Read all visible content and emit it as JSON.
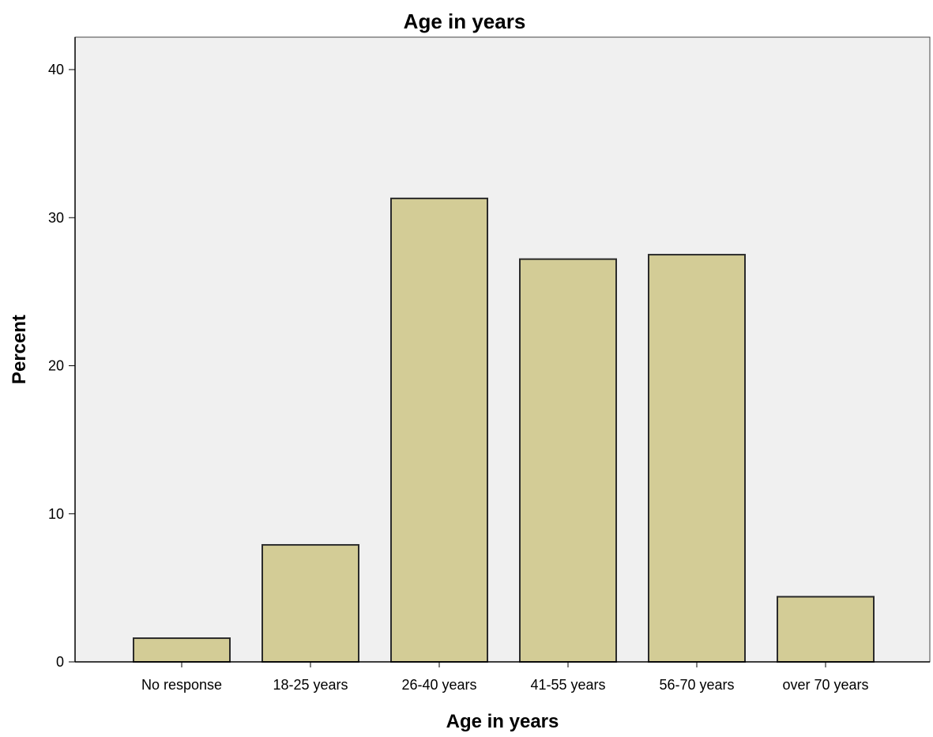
{
  "chart_data": {
    "type": "bar",
    "title": "Age in years",
    "xlabel": "Age in years",
    "ylabel": "Percent",
    "categories": [
      "No response",
      "18-25 years",
      "26-40 years",
      "41-55 years",
      "56-70 years",
      "over 70 years"
    ],
    "values": [
      1.6,
      7.9,
      31.3,
      27.2,
      27.5,
      4.4
    ],
    "ylim": [
      0,
      40
    ],
    "yticks": [
      "0",
      "10",
      "20",
      "30",
      "40"
    ],
    "grid": false,
    "legend": "none",
    "colors": {
      "bar_fill": "#d3cc96",
      "bar_stroke": "#2b2b2b",
      "plot_background": "#f0f0f0",
      "frame": "#444444"
    }
  }
}
